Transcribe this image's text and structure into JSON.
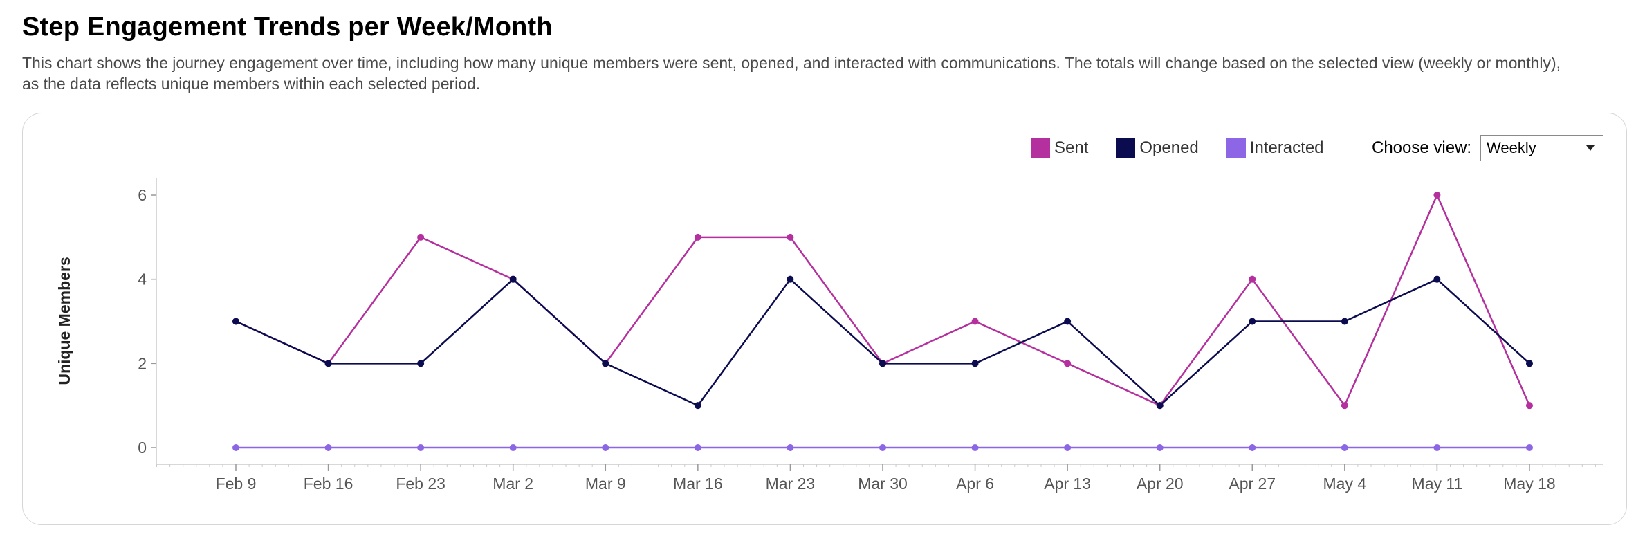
{
  "header": {
    "title": "Step Engagement Trends per Week/Month",
    "description": "This chart shows the journey engagement over time, including how many unique members were sent, opened, and interacted with communications. The totals will change based on the selected view (weekly or monthly), as the data reflects unique members within each selected period."
  },
  "controls": {
    "view_label": "Choose view:",
    "view_selected": "Weekly"
  },
  "colors": {
    "sent": "#b5309f",
    "opened": "#0b0b4f",
    "interacted": "#8c66e4",
    "axis": "#cccccc",
    "tick_text": "#555555"
  },
  "chart_data": {
    "type": "line",
    "title": "",
    "xlabel": "",
    "ylabel": "Unique Members",
    "ylim": [
      0,
      6
    ],
    "yticks": [
      0,
      2,
      4,
      6
    ],
    "grid": false,
    "legend_position": "top-right",
    "categories": [
      "Feb 9",
      "Feb 16",
      "Feb 23",
      "Mar 2",
      "Mar 9",
      "Mar 16",
      "Mar 23",
      "Mar 30",
      "Apr 6",
      "Apr 13",
      "Apr 20",
      "Apr 27",
      "May 4",
      "May 11",
      "May 18"
    ],
    "series": [
      {
        "name": "Sent",
        "color_key": "sent",
        "values": [
          3,
          2,
          5,
          4,
          2,
          5,
          5,
          2,
          3,
          2,
          1,
          4,
          1,
          6,
          1
        ]
      },
      {
        "name": "Opened",
        "color_key": "opened",
        "values": [
          3,
          2,
          2,
          4,
          2,
          1,
          4,
          2,
          2,
          3,
          1,
          3,
          3,
          4,
          2
        ]
      },
      {
        "name": "Interacted",
        "color_key": "interacted",
        "values": [
          0,
          0,
          0,
          0,
          0,
          0,
          0,
          0,
          0,
          0,
          0,
          0,
          0,
          0,
          0
        ]
      }
    ]
  }
}
